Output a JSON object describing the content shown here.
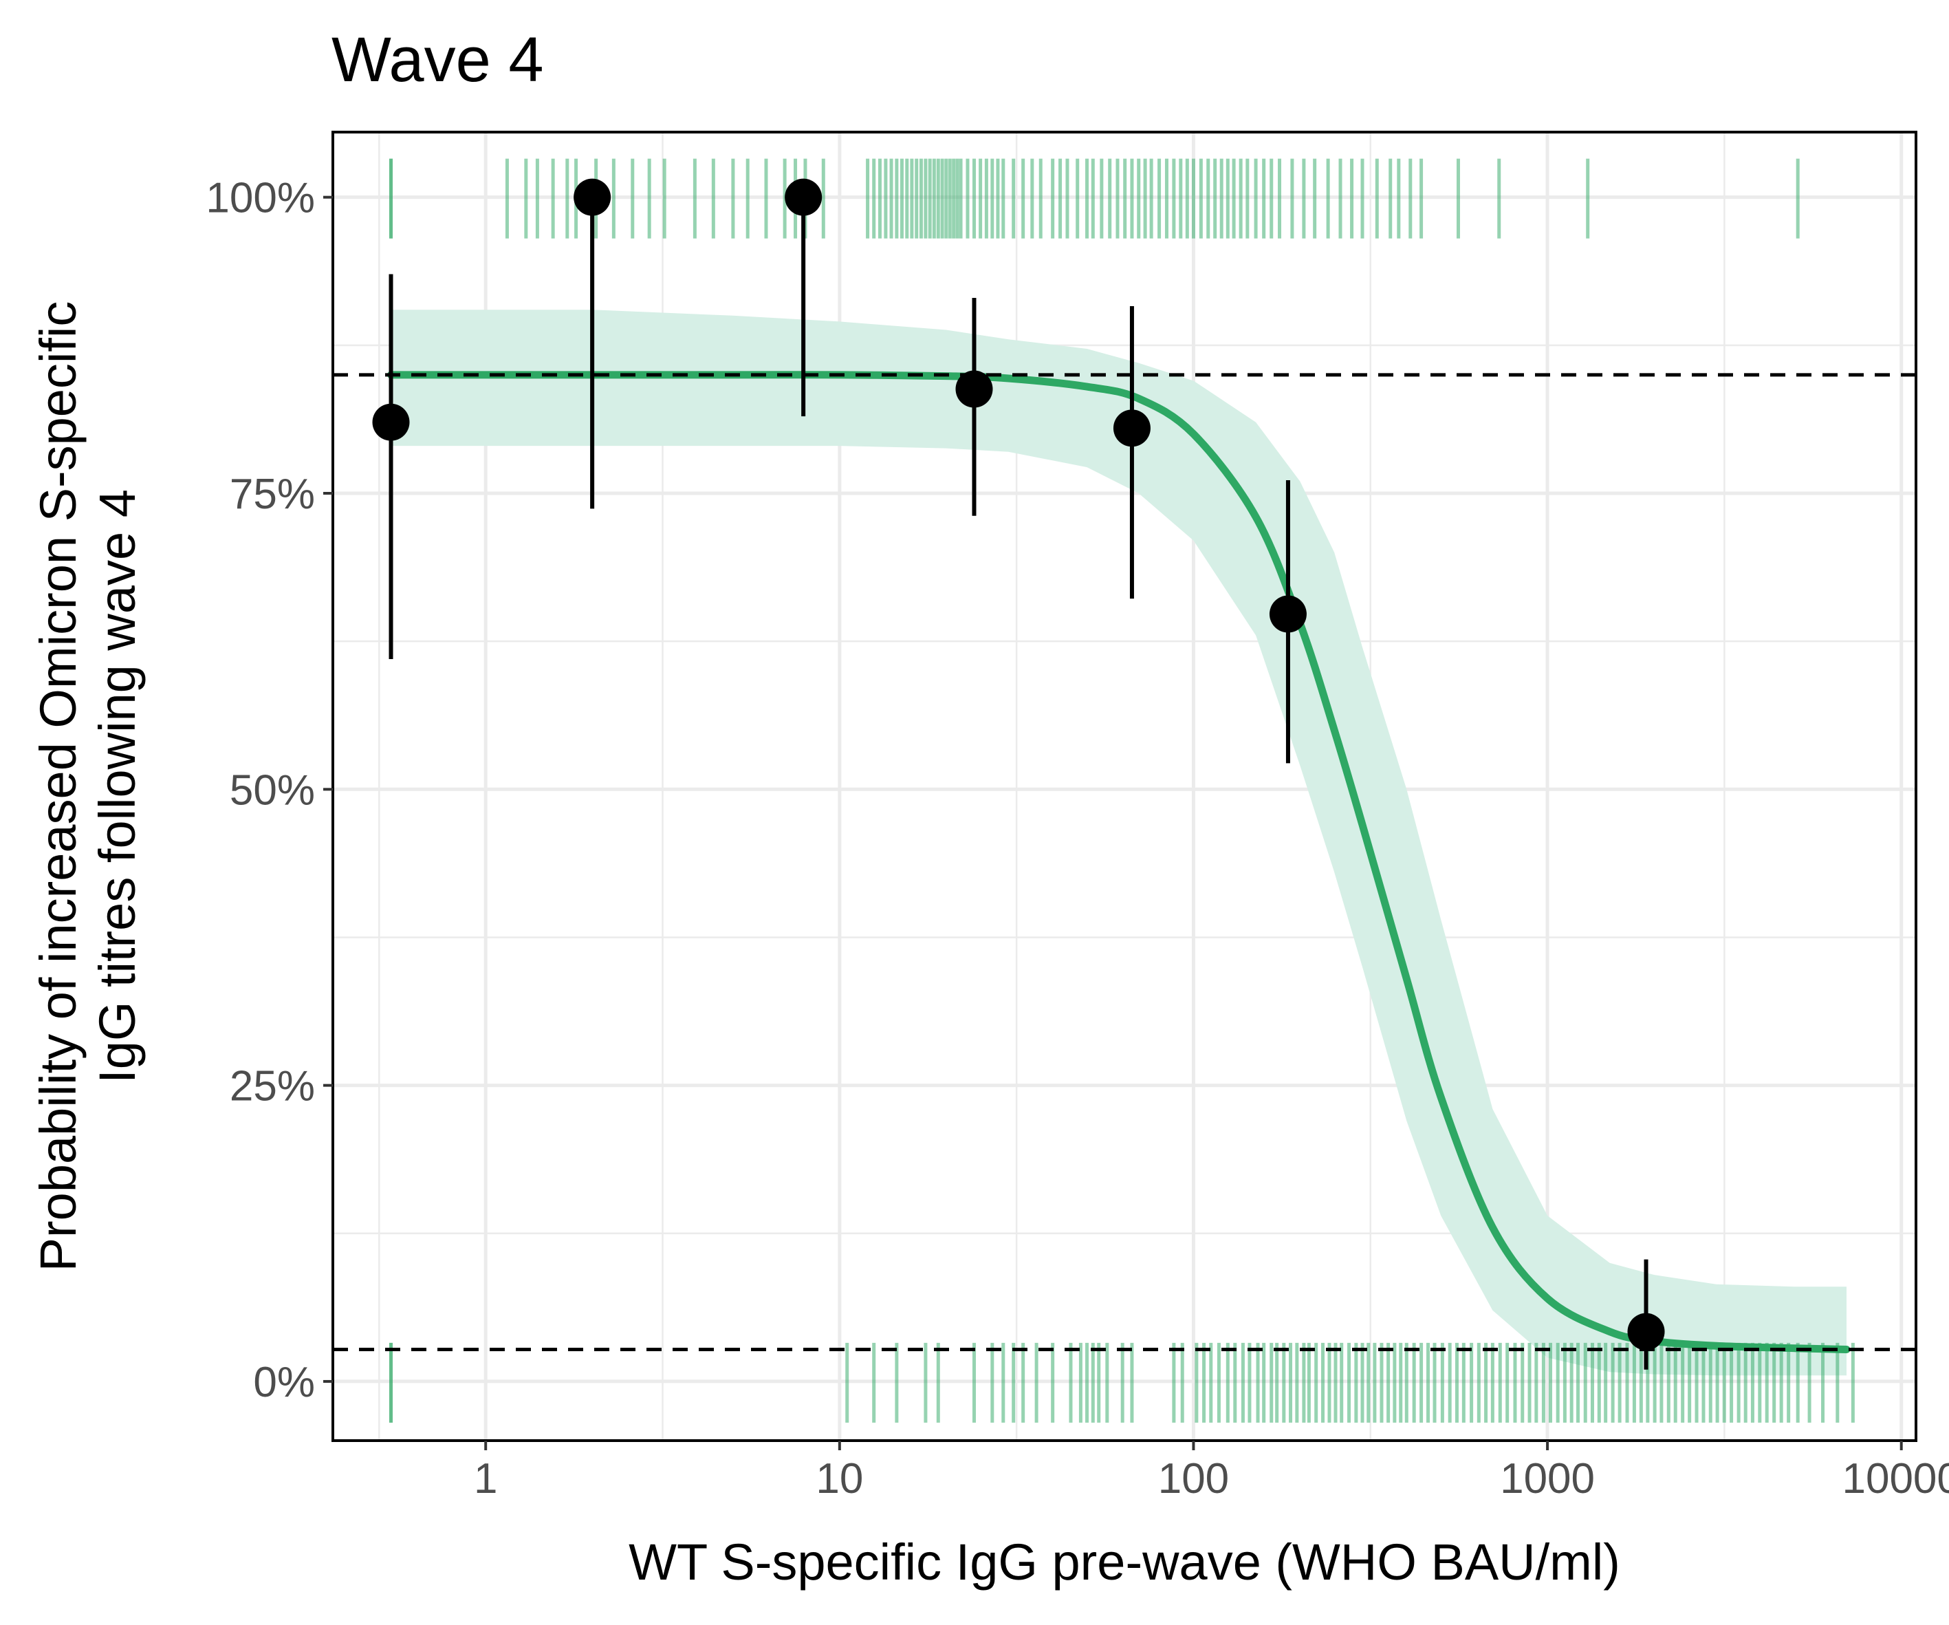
{
  "chart_data": {
    "type": "scatter",
    "title": "Wave 4",
    "xlabel": "WT S-specific IgG pre-wave (WHO BAU/ml)",
    "ylabel_lines": [
      "Probability of increased Omicron S-specific",
      "IgG titres following wave 4"
    ],
    "x_scale": "log10",
    "xlim": [
      0.37,
      11000
    ],
    "ylim": [
      -0.05,
      1.055
    ],
    "x_ticks": [
      1,
      10,
      100,
      1000,
      10000
    ],
    "x_tick_labels": [
      "1",
      "10",
      "100",
      "1000",
      "10000"
    ],
    "y_ticks": [
      0,
      0.25,
      0.5,
      0.75,
      1.0
    ],
    "y_tick_labels": [
      "0%",
      "25%",
      "50%",
      "75%",
      "100%"
    ],
    "grid": true,
    "colors": {
      "curve": "#2ea864",
      "ribbon": "#d6efe6",
      "rug": "#2ea864",
      "points": "#000000",
      "reference_lines": "#000000"
    },
    "reference_lines_y": [
      0.85,
      0.027
    ],
    "fitted_curve": {
      "x": [
        0.54,
        1,
        2,
        5,
        10,
        20,
        30,
        50,
        70,
        100,
        150,
        200,
        250,
        300,
        400,
        500,
        700,
        1000,
        1500,
        2000,
        3000,
        5000,
        7000
      ],
      "y": [
        0.85,
        0.85,
        0.85,
        0.85,
        0.85,
        0.849,
        0.847,
        0.84,
        0.83,
        0.8,
        0.73,
        0.64,
        0.55,
        0.47,
        0.34,
        0.24,
        0.13,
        0.07,
        0.042,
        0.034,
        0.03,
        0.028,
        0.027
      ],
      "ci_lower": [
        0.79,
        0.79,
        0.79,
        0.79,
        0.79,
        0.788,
        0.785,
        0.772,
        0.75,
        0.71,
        0.63,
        0.52,
        0.43,
        0.35,
        0.22,
        0.14,
        0.06,
        0.02,
        0.008,
        0.006,
        0.005,
        0.005,
        0.005
      ],
      "ci_upper": [
        0.905,
        0.905,
        0.905,
        0.9,
        0.895,
        0.888,
        0.88,
        0.872,
        0.86,
        0.845,
        0.81,
        0.76,
        0.7,
        0.62,
        0.5,
        0.39,
        0.23,
        0.14,
        0.1,
        0.09,
        0.082,
        0.08,
        0.08
      ]
    },
    "binned_points": [
      {
        "x": 0.54,
        "y": 0.81,
        "lower": 0.61,
        "upper": 0.935
      },
      {
        "x": 2.0,
        "y": 1.0,
        "lower": 0.737,
        "upper": 1.0
      },
      {
        "x": 7.9,
        "y": 1.0,
        "lower": 0.815,
        "upper": 1.0
      },
      {
        "x": 24,
        "y": 0.838,
        "lower": 0.731,
        "upper": 0.915
      },
      {
        "x": 67,
        "y": 0.805,
        "lower": 0.661,
        "upper": 0.908
      },
      {
        "x": 185,
        "y": 0.648,
        "lower": 0.522,
        "upper": 0.761
      },
      {
        "x": 1900,
        "y": 0.042,
        "lower": 0.01,
        "upper": 0.103
      }
    ],
    "rug_top_x": [
      0.54,
      0.54,
      1.15,
      1.3,
      1.4,
      1.55,
      1.7,
      1.8,
      2.05,
      2.3,
      2.6,
      2.9,
      3.2,
      3.9,
      4.4,
      5.0,
      5.5,
      6.2,
      7.0,
      7.5,
      8.0,
      9.0,
      12,
      12.5,
      13,
      13.5,
      14,
      14.5,
      15,
      15.5,
      16,
      16.5,
      17,
      17.5,
      18,
      18.5,
      19,
      19.5,
      20,
      20.5,
      21,
      21.5,
      22,
      23,
      24,
      25,
      26,
      27,
      28,
      29,
      31,
      33,
      35,
      37,
      40,
      42,
      44,
      47,
      50,
      52,
      55,
      58,
      61,
      64,
      67,
      70,
      73,
      76,
      80,
      84,
      88,
      92,
      96,
      100,
      105,
      110,
      115,
      120,
      125,
      130,
      136,
      142,
      150,
      158,
      166,
      175,
      190,
      205,
      220,
      240,
      260,
      280,
      300,
      330,
      360,
      380,
      410,
      440,
      560,
      730,
      1300,
      5100
    ],
    "rug_bottom_x": [
      0.54,
      0.54,
      10.5,
      12.5,
      14.5,
      17.5,
      19,
      24,
      27,
      29,
      31,
      33,
      36,
      40,
      45,
      48,
      50,
      52,
      54,
      57,
      63,
      67,
      88,
      93,
      102,
      107,
      112,
      118,
      125,
      131,
      138,
      144,
      152,
      158,
      166,
      172,
      180,
      188,
      196,
      205,
      212,
      222,
      232,
      242,
      252,
      262,
      275,
      288,
      300,
      312,
      325,
      340,
      355,
      370,
      385,
      400,
      420,
      440,
      460,
      480,
      505,
      530,
      555,
      580,
      610,
      640,
      670,
      700,
      735,
      770,
      810,
      850,
      890,
      930,
      975,
      1020,
      1070,
      1120,
      1170,
      1220,
      1280,
      1340,
      1400,
      1460,
      1530,
      1600,
      1680,
      1760,
      1840,
      1920,
      2010,
      2100,
      2200,
      2300,
      2410,
      2520,
      2640,
      2760,
      2890,
      3020,
      3160,
      3310,
      3470,
      3630,
      3800,
      3980,
      4170,
      4370,
      4580,
      4800,
      5100,
      5500,
      6000,
      6600,
      7300
    ]
  }
}
